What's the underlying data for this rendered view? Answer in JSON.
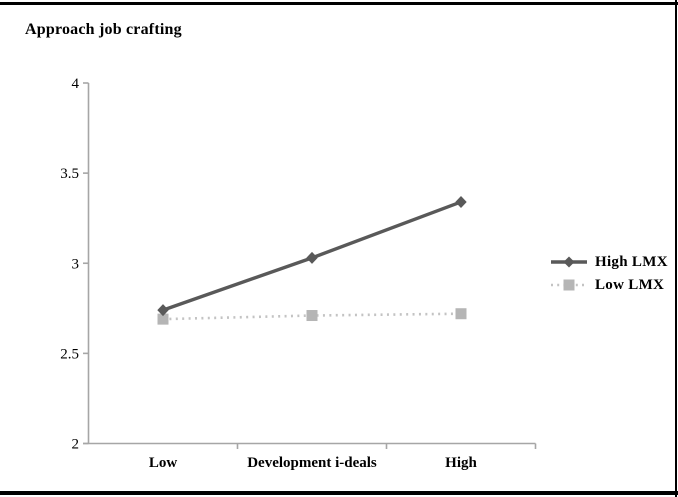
{
  "figure": {
    "title": "Approach job crafting"
  },
  "chart_data": {
    "type": "line",
    "title": "Approach job crafting",
    "categories": [
      "Low",
      "Development i-deals",
      "High"
    ],
    "series": [
      {
        "name": "High LMX",
        "values": [
          2.74,
          3.03,
          3.34
        ],
        "color": "#595959",
        "marker": "diamond",
        "marker_color": "#595959",
        "line_style": "solid"
      },
      {
        "name": "Low LMX",
        "values": [
          2.69,
          2.71,
          2.72
        ],
        "color": "#c3c3c3",
        "marker": "square",
        "marker_color": "#b5b5b5",
        "line_style": "dotted"
      }
    ],
    "ylabel": "Approach job crafting",
    "xlabel": "Development i-deals",
    "ylim": [
      2,
      4
    ],
    "yticks": [
      "4",
      "3.5",
      "3",
      "2.5",
      "2"
    ],
    "grid": false,
    "legend_position": "right",
    "axis_color": "#a6a6a6",
    "text_color": "#000000",
    "rule_color": "#000000"
  }
}
